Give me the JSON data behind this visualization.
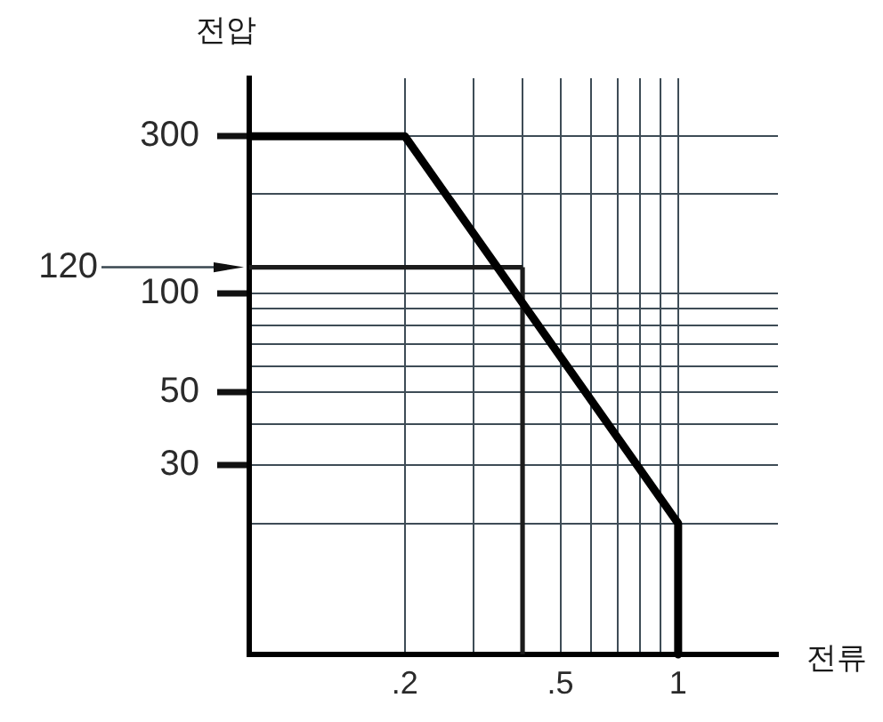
{
  "chart_data": {
    "type": "line",
    "xlabel": "전류",
    "ylabel": "전압",
    "log": "xy",
    "x": [
      0.08,
      0.2,
      1,
      1
    ],
    "series": [
      {
        "color": "#000000",
        "values": [
          300,
          300,
          20,
          8
        ]
      }
    ],
    "xlim": [
      0.08,
      1.8
    ],
    "ylim": [
      8,
      450
    ],
    "xticks": [
      {
        "value": 0.2,
        "label": ".2"
      },
      {
        "value": 0.3,
        "label": null
      },
      {
        "value": 0.4,
        "label": null
      },
      {
        "value": 0.5,
        "label": ".5"
      },
      {
        "value": 0.6,
        "label": null
      },
      {
        "value": 0.7,
        "label": null
      },
      {
        "value": 0.8,
        "label": null
      },
      {
        "value": 0.9,
        "label": null
      },
      1
    ],
    "yticks": [
      {
        "value": 20,
        "label": null
      },
      30,
      {
        "value": 40,
        "label": null
      },
      50,
      {
        "value": 60,
        "label": null
      },
      {
        "value": 70,
        "label": null
      },
      {
        "value": 80,
        "label": null
      },
      {
        "value": 90,
        "label": null
      },
      100,
      {
        "value": 200,
        "label": null
      },
      300
    ],
    "ref_lines": [
      {
        "axis": "y",
        "value": 120,
        "label": "120"
      },
      {
        "axis": "x",
        "value": 0.4
      }
    ],
    "grid": true,
    "marker": "none"
  }
}
